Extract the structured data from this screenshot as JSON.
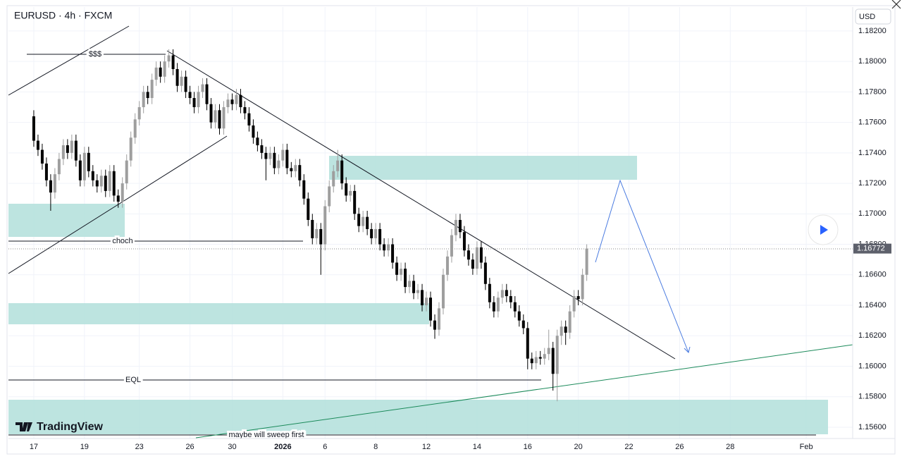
{
  "chart_data": {
    "type": "candlestick",
    "title": "EURUSD · 4h · FXCM",
    "currency": "USD",
    "logo": "TradingView",
    "last_price": {
      "value": 1.16772,
      "label": "1.16772"
    },
    "up_color": "#9e9e9e",
    "down_color": "#000000",
    "grid": true,
    "annotations": [
      "$$$",
      "choch",
      "EQL",
      "maybe will sweep first"
    ],
    "xlim": [
      -6,
      194
    ],
    "xticks": [
      {
        "value": 0,
        "label": "17"
      },
      {
        "value": 12,
        "label": "19"
      },
      {
        "value": 25,
        "label": "23"
      },
      {
        "value": 37,
        "label": "26"
      },
      {
        "value": 47,
        "label": "30"
      },
      {
        "value": 59,
        "label": "2026"
      },
      {
        "value": 69,
        "label": "6"
      },
      {
        "value": 81,
        "label": "8"
      },
      {
        "value": 93,
        "label": "12"
      },
      {
        "value": 105,
        "label": "14"
      },
      {
        "value": 117,
        "label": "16"
      },
      {
        "value": 129,
        "label": "20"
      },
      {
        "value": 141,
        "label": "22"
      },
      {
        "value": 153,
        "label": "26"
      },
      {
        "value": 165,
        "label": "28"
      },
      {
        "value": 183,
        "label": "Feb"
      }
    ],
    "ylim": [
      1.15535,
      1.18357
    ],
    "yticks": [
      {
        "value": 1.156,
        "label": "1.15600"
      },
      {
        "value": 1.158,
        "label": "1.15800"
      },
      {
        "value": 1.16,
        "label": "1.16000"
      },
      {
        "value": 1.162,
        "label": "1.16200"
      },
      {
        "value": 1.164,
        "label": "1.16400"
      },
      {
        "value": 1.166,
        "label": "1.16600"
      },
      {
        "value": 1.168,
        "label": "1.16800"
      },
      {
        "value": 1.17,
        "label": "1.17000"
      },
      {
        "value": 1.172,
        "label": "1.17200"
      },
      {
        "value": 1.174,
        "label": "1.17400"
      },
      {
        "value": 1.176,
        "label": "1.17600"
      },
      {
        "value": 1.178,
        "label": "1.17800"
      },
      {
        "value": 1.18,
        "label": "1.18000"
      },
      {
        "value": 1.182,
        "label": "1.18200"
      }
    ],
    "open": [
      1.1764,
      1.1748,
      1.1742,
      1.1733,
      1.1722,
      1.1714,
      1.1726,
      1.1736,
      1.1745,
      1.174,
      1.1748,
      1.1735,
      1.1722,
      1.174,
      1.1728,
      1.1722,
      1.1718,
      1.1725,
      1.1715,
      1.1728,
      1.1712,
      1.1708,
      1.172,
      1.1735,
      1.175,
      1.1762,
      1.177,
      1.178,
      1.1776,
      1.1788,
      1.1796,
      1.179,
      1.18,
      1.1804,
      1.1795,
      1.1784,
      1.179,
      1.178,
      1.1776,
      1.177,
      1.178,
      1.1785,
      1.1772,
      1.176,
      1.1768,
      1.1756,
      1.177,
      1.1775,
      1.1772,
      1.1778,
      1.177,
      1.1766,
      1.1758,
      1.175,
      1.1745,
      1.174,
      1.1736,
      1.174,
      1.173,
      1.1735,
      1.1742,
      1.173,
      1.1728,
      1.1732,
      1.1722,
      1.171,
      1.1696,
      1.1684,
      1.169,
      1.168,
      1.1705,
      1.1718,
      1.1728,
      1.1735,
      1.172,
      1.1712,
      1.1715,
      1.17,
      1.1692,
      1.1698,
      1.169,
      1.1684,
      1.169,
      1.168,
      1.1676,
      1.168,
      1.1668,
      1.166,
      1.1664,
      1.1652,
      1.1656,
      1.1648,
      1.165,
      1.164,
      1.1645,
      1.163,
      1.1624,
      1.1638,
      1.166,
      1.1672,
      1.1686,
      1.1696,
      1.1688,
      1.1676,
      1.167,
      1.1664,
      1.1678,
      1.1668,
      1.1654,
      1.1642,
      1.1636,
      1.1645,
      1.165,
      1.1646,
      1.1642,
      1.1636,
      1.163,
      1.1625,
      1.1605,
      1.1602,
      1.1606,
      1.1605,
      1.1608,
      1.1612,
      1.1595,
      1.162,
      1.1626,
      1.1622,
      1.1636,
      1.1646,
      1.1644,
      1.166
    ],
    "high": [
      1.1768,
      1.1752,
      1.1746,
      1.1737,
      1.1726,
      1.173,
      1.174,
      1.1749,
      1.1749,
      1.1752,
      1.1752,
      1.1739,
      1.1744,
      1.1744,
      1.1732,
      1.1726,
      1.1729,
      1.1729,
      1.1732,
      1.1732,
      1.1716,
      1.1724,
      1.1739,
      1.1754,
      1.1766,
      1.1774,
      1.1784,
      1.1784,
      1.1792,
      1.18,
      1.18,
      1.1804,
      1.1808,
      1.1808,
      1.1799,
      1.1794,
      1.1794,
      1.1784,
      1.178,
      1.1784,
      1.1789,
      1.1789,
      1.1776,
      1.1772,
      1.1772,
      1.1774,
      1.1779,
      1.1779,
      1.1782,
      1.1782,
      1.1774,
      1.177,
      1.1762,
      1.1754,
      1.1749,
      1.1744,
      1.1744,
      1.1744,
      1.1739,
      1.1746,
      1.1746,
      1.1734,
      1.1736,
      1.1736,
      1.1726,
      1.1714,
      1.17,
      1.1694,
      1.1694,
      1.1709,
      1.1722,
      1.1732,
      1.1742,
      1.1739,
      1.1724,
      1.1719,
      1.1719,
      1.1704,
      1.1702,
      1.1702,
      1.1694,
      1.1694,
      1.1694,
      1.1684,
      1.1684,
      1.1684,
      1.1672,
      1.1668,
      1.1668,
      1.166,
      1.166,
      1.1654,
      1.1654,
      1.1649,
      1.1649,
      1.1634,
      1.1642,
      1.1664,
      1.1676,
      1.169,
      1.17,
      1.17,
      1.1692,
      1.168,
      1.1674,
      1.1682,
      1.1682,
      1.1672,
      1.1658,
      1.1646,
      1.1649,
      1.1654,
      1.1654,
      1.165,
      1.1646,
      1.164,
      1.1634,
      1.1629,
      1.1609,
      1.161,
      1.161,
      1.1612,
      1.1624,
      1.1616,
      1.1624,
      1.163,
      1.163,
      1.164,
      1.165,
      1.165,
      1.1664,
      1.168
    ],
    "low": [
      1.1744,
      1.1738,
      1.1729,
      1.1718,
      1.1702,
      1.171,
      1.1722,
      1.1732,
      1.1736,
      1.1736,
      1.1731,
      1.1718,
      1.1718,
      1.1724,
      1.1718,
      1.1714,
      1.1714,
      1.1711,
      1.1711,
      1.1708,
      1.1704,
      1.1704,
      1.1716,
      1.1731,
      1.1746,
      1.1758,
      1.1766,
      1.1772,
      1.1772,
      1.1784,
      1.1786,
      1.1786,
      1.1796,
      1.1791,
      1.178,
      1.178,
      1.1776,
      1.1772,
      1.1766,
      1.1766,
      1.1776,
      1.1768,
      1.1756,
      1.1756,
      1.1752,
      1.1752,
      1.1766,
      1.1768,
      1.1768,
      1.1766,
      1.1762,
      1.1754,
      1.1746,
      1.1741,
      1.1736,
      1.1722,
      1.1732,
      1.1726,
      1.1726,
      1.1731,
      1.1726,
      1.1724,
      1.1724,
      1.1718,
      1.1706,
      1.1692,
      1.168,
      1.168,
      1.166,
      1.1676,
      1.1701,
      1.1714,
      1.1724,
      1.1716,
      1.1708,
      1.1708,
      1.1696,
      1.1688,
      1.1688,
      1.1686,
      1.168,
      1.168,
      1.1676,
      1.1672,
      1.1672,
      1.1664,
      1.1656,
      1.1656,
      1.1648,
      1.1648,
      1.1644,
      1.1644,
      1.1636,
      1.1636,
      1.1626,
      1.1618,
      1.162,
      1.1634,
      1.1656,
      1.1668,
      1.1682,
      1.1684,
      1.1672,
      1.1666,
      1.166,
      1.166,
      1.1664,
      1.165,
      1.1638,
      1.1632,
      1.1632,
      1.1641,
      1.1642,
      1.1638,
      1.1632,
      1.1626,
      1.1621,
      1.1598,
      1.1598,
      1.1598,
      1.1601,
      1.1601,
      1.1604,
      1.1584,
      1.1577,
      1.1614,
      1.1614,
      1.1618,
      1.1632,
      1.164,
      1.164,
      1.1656
    ],
    "close": [
      1.1748,
      1.1742,
      1.1733,
      1.1722,
      1.1714,
      1.1726,
      1.1736,
      1.1745,
      1.174,
      1.1748,
      1.1735,
      1.1722,
      1.174,
      1.1728,
      1.1722,
      1.1718,
      1.1725,
      1.1715,
      1.1728,
      1.1712,
      1.1708,
      1.172,
      1.1735,
      1.175,
      1.1762,
      1.177,
      1.178,
      1.1776,
      1.1788,
      1.1796,
      1.179,
      1.18,
      1.1804,
      1.1795,
      1.1784,
      1.179,
      1.178,
      1.1776,
      1.177,
      1.178,
      1.1785,
      1.1772,
      1.176,
      1.1768,
      1.1756,
      1.177,
      1.1775,
      1.1772,
      1.1778,
      1.177,
      1.1766,
      1.1758,
      1.175,
      1.1745,
      1.174,
      1.1736,
      1.174,
      1.173,
      1.1735,
      1.1742,
      1.173,
      1.1728,
      1.1732,
      1.1722,
      1.171,
      1.1696,
      1.1684,
      1.169,
      1.168,
      1.1705,
      1.1718,
      1.1728,
      1.1735,
      1.172,
      1.1712,
      1.1715,
      1.17,
      1.1692,
      1.1698,
      1.169,
      1.1684,
      1.169,
      1.168,
      1.1676,
      1.168,
      1.1668,
      1.166,
      1.1664,
      1.1652,
      1.1656,
      1.1648,
      1.165,
      1.164,
      1.1645,
      1.163,
      1.1624,
      1.1638,
      1.166,
      1.1672,
      1.1686,
      1.1696,
      1.1688,
      1.1676,
      1.167,
      1.1664,
      1.1678,
      1.1668,
      1.1654,
      1.1642,
      1.1636,
      1.1645,
      1.165,
      1.1646,
      1.1642,
      1.1636,
      1.163,
      1.1625,
      1.1605,
      1.1602,
      1.1606,
      1.1605,
      1.1608,
      1.1612,
      1.1595,
      1.162,
      1.1626,
      1.1622,
      1.1636,
      1.1646,
      1.1644,
      1.166,
      1.16772
    ]
  }
}
